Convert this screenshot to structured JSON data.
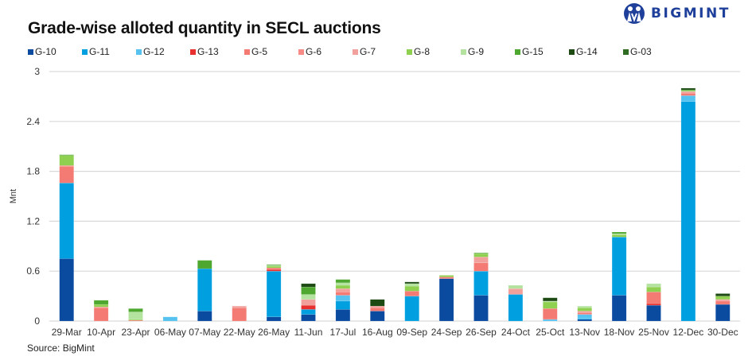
{
  "header": {
    "title": "Grade-wise alloted quantity in SECL auctions",
    "brand": "BIGMINT"
  },
  "footer": {
    "source": "Source: BigMint"
  },
  "chart_data": {
    "type": "bar",
    "stacked": true,
    "title": "Grade-wise alloted quantity in SECL auctions",
    "xlabel": "",
    "ylabel": "Mnt",
    "ylim": [
      0,
      3
    ],
    "yticks": [
      0,
      0.6,
      1.2,
      1.8,
      2.4,
      3
    ],
    "ytick_labels": [
      "0",
      "0.6",
      "1.2",
      "1.8",
      "2.4",
      "3"
    ],
    "grid": true,
    "legend_position": "top-left",
    "categories": [
      "29-Mar",
      "10-Apr",
      "23-Apr",
      "06-May",
      "07-May",
      "22-May",
      "26-May",
      "11-Jun",
      "17-Jul",
      "16-Aug",
      "09-Sep",
      "24-Sep",
      "26-Sep",
      "24-Oct",
      "25-Oct",
      "13-Nov",
      "18-Nov",
      "25-Nov",
      "12-Dec",
      "30-Dec"
    ],
    "series": [
      {
        "name": "G-10",
        "color": "#0a4a9f",
        "values": [
          0.75,
          0,
          0,
          0,
          0.12,
          0,
          0.05,
          0.08,
          0.14,
          0.12,
          0,
          0.51,
          0.31,
          0,
          0,
          0.02,
          0.31,
          0.19,
          0,
          0.2
        ]
      },
      {
        "name": "G-11",
        "color": "#00a0e0",
        "values": [
          0.91,
          0,
          0,
          0,
          0.51,
          0,
          0.55,
          0.06,
          0.1,
          0,
          0.3,
          0,
          0.29,
          0.32,
          0,
          0.01,
          0.7,
          0,
          2.64,
          0
        ]
      },
      {
        "name": "G-12",
        "color": "#56c2f0",
        "values": [
          0,
          0,
          0,
          0.05,
          0,
          0,
          0,
          0,
          0.07,
          0,
          0,
          0,
          0,
          0,
          0.02,
          0.05,
          0,
          0,
          0.07,
          0
        ]
      },
      {
        "name": "G-13",
        "color": "#e8312f",
        "values": [
          0,
          0,
          0,
          0,
          0,
          0,
          0.02,
          0.05,
          0,
          0,
          0,
          0,
          0,
          0,
          0,
          0,
          0,
          0.02,
          0,
          0
        ]
      },
      {
        "name": "G-5",
        "color": "#f47b73",
        "values": [
          0.2,
          0.16,
          0.01,
          0,
          0,
          0.16,
          0.02,
          0,
          0.04,
          0.04,
          0.06,
          0.02,
          0.1,
          0,
          0.13,
          0.02,
          0,
          0.14,
          0.03,
          0.04
        ]
      },
      {
        "name": "G-6",
        "color": "#f68c85",
        "values": [
          0.01,
          0.01,
          0,
          0,
          0,
          0,
          0,
          0,
          0,
          0,
          0,
          0,
          0,
          0,
          0,
          0,
          0,
          0,
          0,
          0
        ]
      },
      {
        "name": "G-7",
        "color": "#f2a09b",
        "values": [
          0,
          0,
          0,
          0,
          0,
          0.02,
          0,
          0.07,
          0.04,
          0.02,
          0,
          0,
          0.07,
          0.07,
          0,
          0.02,
          0,
          0,
          0.02,
          0.02
        ]
      },
      {
        "name": "G-8",
        "color": "#90d050",
        "values": [
          0.12,
          0.03,
          0.01,
          0,
          0,
          0,
          0.02,
          0,
          0.04,
          0,
          0.06,
          0.02,
          0.04,
          0,
          0.08,
          0.04,
          0.03,
          0.06,
          0.01,
          0.04
        ]
      },
      {
        "name": "G-9",
        "color": "#b4e3a0",
        "values": [
          0,
          0,
          0.09,
          0,
          0,
          0,
          0.01,
          0.06,
          0.03,
          0,
          0.03,
          0,
          0,
          0.04,
          0.01,
          0.02,
          0.01,
          0.04,
          0,
          0
        ]
      },
      {
        "name": "G-15",
        "color": "#4ea72e",
        "values": [
          0.01,
          0.05,
          0.04,
          0,
          0.1,
          0,
          0.01,
          0.09,
          0.04,
          0,
          0,
          0,
          0.01,
          0,
          0,
          0,
          0.02,
          0,
          0.01,
          0
        ]
      },
      {
        "name": "G-14",
        "color": "#1c4a12",
        "values": [
          0,
          0,
          0,
          0,
          0,
          0,
          0,
          0.04,
          0,
          0.08,
          0.02,
          0,
          0,
          0,
          0.04,
          0,
          0,
          0,
          0.02,
          0.03
        ]
      },
      {
        "name": "G-03",
        "color": "#2f6b20",
        "values": [
          0,
          0,
          0,
          0,
          0,
          0,
          0,
          0,
          0,
          0,
          0,
          0,
          0,
          0,
          0,
          0,
          0,
          0,
          0,
          0
        ]
      }
    ]
  }
}
